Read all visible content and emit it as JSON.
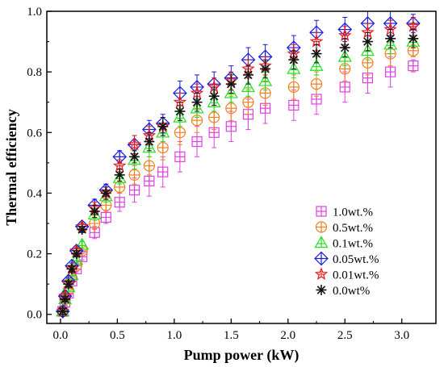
{
  "chart_data": {
    "type": "scatter",
    "title": "",
    "xlabel": "Pump power (kW)",
    "ylabel": "Thermal efficiency",
    "xlim": [
      -0.12,
      3.3
    ],
    "ylim": [
      -0.03,
      1.0
    ],
    "xticks": [
      "0.0",
      "0.5",
      "1.0",
      "1.5",
      "2.0",
      "2.5",
      "3.0"
    ],
    "yticks": [
      "0.0",
      "0.2",
      "0.4",
      "0.6",
      "0.8",
      "1.0"
    ],
    "grid": false,
    "legend_position": "lower-right",
    "series": [
      {
        "name": "1.0wt.%",
        "color": "#e040e0",
        "marker": "square-plus",
        "x": [
          0.02,
          0.04,
          0.07,
          0.1,
          0.14,
          0.19,
          0.3,
          0.4,
          0.52,
          0.65,
          0.78,
          0.9,
          1.05,
          1.2,
          1.35,
          1.5,
          1.65,
          1.8,
          2.05,
          2.25,
          2.5,
          2.7,
          2.9,
          3.1
        ],
        "y": [
          0.01,
          0.04,
          0.07,
          0.11,
          0.15,
          0.19,
          0.27,
          0.32,
          0.37,
          0.41,
          0.44,
          0.47,
          0.52,
          0.57,
          0.6,
          0.62,
          0.66,
          0.68,
          0.69,
          0.71,
          0.75,
          0.78,
          0.8,
          0.82
        ],
        "err": [
          0.01,
          0.01,
          0.01,
          0.01,
          0.01,
          0.01,
          0.02,
          0.02,
          0.03,
          0.04,
          0.05,
          0.05,
          0.05,
          0.05,
          0.05,
          0.05,
          0.05,
          0.05,
          0.05,
          0.05,
          0.05,
          0.05,
          0.05,
          0.02
        ]
      },
      {
        "name": "0.5wt.%",
        "color": "#f08020",
        "marker": "circle-plus",
        "x": [
          0.02,
          0.04,
          0.07,
          0.1,
          0.14,
          0.19,
          0.3,
          0.4,
          0.52,
          0.65,
          0.78,
          0.9,
          1.05,
          1.2,
          1.35,
          1.5,
          1.65,
          1.8,
          2.05,
          2.25,
          2.5,
          2.7,
          2.9,
          3.1
        ],
        "y": [
          0.01,
          0.05,
          0.08,
          0.12,
          0.16,
          0.21,
          0.3,
          0.36,
          0.42,
          0.46,
          0.49,
          0.55,
          0.6,
          0.64,
          0.65,
          0.68,
          0.7,
          0.73,
          0.75,
          0.76,
          0.81,
          0.83,
          0.86,
          0.87
        ],
        "err": [
          0.01,
          0.01,
          0.01,
          0.01,
          0.01,
          0.01,
          0.02,
          0.02,
          0.02,
          0.03,
          0.03,
          0.04,
          0.04,
          0.04,
          0.04,
          0.04,
          0.04,
          0.04,
          0.04,
          0.04,
          0.04,
          0.04,
          0.04,
          0.02
        ]
      },
      {
        "name": "0.1wt.%",
        "color": "#20e020",
        "marker": "triangle-plus",
        "x": [
          0.02,
          0.04,
          0.07,
          0.1,
          0.14,
          0.19,
          0.3,
          0.4,
          0.52,
          0.65,
          0.78,
          0.9,
          1.05,
          1.2,
          1.35,
          1.5,
          1.65,
          1.8,
          2.05,
          2.25,
          2.5,
          2.7,
          2.9,
          3.1
        ],
        "y": [
          0.01,
          0.05,
          0.09,
          0.13,
          0.18,
          0.23,
          0.33,
          0.39,
          0.45,
          0.51,
          0.55,
          0.6,
          0.65,
          0.68,
          0.7,
          0.73,
          0.75,
          0.77,
          0.81,
          0.82,
          0.85,
          0.87,
          0.89,
          0.9
        ],
        "err": [
          0.01,
          0.01,
          0.01,
          0.01,
          0.01,
          0.01,
          0.02,
          0.02,
          0.02,
          0.03,
          0.03,
          0.03,
          0.03,
          0.03,
          0.03,
          0.03,
          0.03,
          0.03,
          0.03,
          0.03,
          0.03,
          0.03,
          0.03,
          0.02
        ]
      },
      {
        "name": "0.05wt.%",
        "color": "#1a1ae0",
        "marker": "diamond-plus",
        "x": [
          0.02,
          0.04,
          0.07,
          0.1,
          0.14,
          0.19,
          0.3,
          0.4,
          0.52,
          0.65,
          0.78,
          0.9,
          1.05,
          1.2,
          1.35,
          1.5,
          1.65,
          1.8,
          2.05,
          2.25,
          2.5,
          2.7,
          2.9,
          3.1
        ],
        "y": [
          0.01,
          0.06,
          0.11,
          0.16,
          0.21,
          0.29,
          0.36,
          0.41,
          0.52,
          0.56,
          0.61,
          0.63,
          0.73,
          0.75,
          0.76,
          0.78,
          0.84,
          0.85,
          0.88,
          0.93,
          0.94,
          0.96,
          0.96,
          0.96
        ],
        "err": [
          0.01,
          0.01,
          0.01,
          0.01,
          0.01,
          0.01,
          0.02,
          0.02,
          0.02,
          0.03,
          0.03,
          0.03,
          0.04,
          0.04,
          0.04,
          0.04,
          0.04,
          0.04,
          0.04,
          0.04,
          0.04,
          0.04,
          0.04,
          0.03
        ]
      },
      {
        "name": "0.01wt.%",
        "color": "#e81818",
        "marker": "star",
        "x": [
          0.02,
          0.04,
          0.07,
          0.1,
          0.14,
          0.19,
          0.3,
          0.4,
          0.52,
          0.65,
          0.78,
          0.9,
          1.05,
          1.2,
          1.35,
          1.5,
          1.65,
          1.8,
          2.05,
          2.25,
          2.5,
          2.7,
          2.9,
          3.1
        ],
        "y": [
          0.01,
          0.06,
          0.1,
          0.15,
          0.21,
          0.29,
          0.35,
          0.4,
          0.49,
          0.56,
          0.59,
          0.62,
          0.7,
          0.73,
          0.75,
          0.77,
          0.81,
          0.82,
          0.86,
          0.9,
          0.92,
          0.93,
          0.94,
          0.95
        ],
        "err": [
          0.01,
          0.01,
          0.01,
          0.01,
          0.01,
          0.01,
          0.02,
          0.02,
          0.02,
          0.03,
          0.03,
          0.03,
          0.03,
          0.03,
          0.03,
          0.03,
          0.03,
          0.03,
          0.03,
          0.03,
          0.03,
          0.03,
          0.03,
          0.03
        ]
      },
      {
        "name": "0.0wt%",
        "color": "#111111",
        "marker": "asterisk",
        "x": [
          0.02,
          0.04,
          0.07,
          0.1,
          0.14,
          0.19,
          0.3,
          0.4,
          0.52,
          0.65,
          0.78,
          0.9,
          1.05,
          1.2,
          1.35,
          1.5,
          1.65,
          1.8,
          2.05,
          2.25,
          2.5,
          2.7,
          2.9,
          3.1
        ],
        "y": [
          0.01,
          0.05,
          0.1,
          0.15,
          0.2,
          0.28,
          0.34,
          0.4,
          0.46,
          0.52,
          0.57,
          0.62,
          0.67,
          0.7,
          0.72,
          0.76,
          0.79,
          0.81,
          0.84,
          0.86,
          0.88,
          0.9,
          0.91,
          0.91
        ],
        "err": [
          0.01,
          0.01,
          0.01,
          0.01,
          0.01,
          0.01,
          0.02,
          0.02,
          0.02,
          0.02,
          0.03,
          0.03,
          0.03,
          0.03,
          0.03,
          0.03,
          0.03,
          0.03,
          0.03,
          0.03,
          0.03,
          0.03,
          0.03,
          0.03
        ]
      }
    ]
  }
}
